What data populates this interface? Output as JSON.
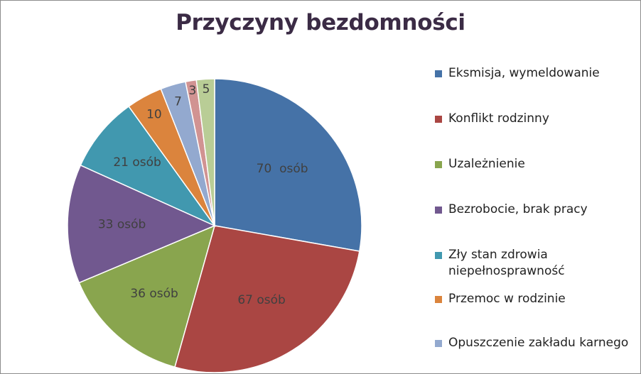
{
  "chart_data": {
    "type": "pie",
    "title": "Przyczyny bezdomności",
    "slices": [
      {
        "category": "Eksmisja, wymeldowanie",
        "value": 70,
        "label": "70  osób",
        "color": "#4572a7"
      },
      {
        "category": "Konflikt rodzinny",
        "value": 67,
        "label": "67 osób",
        "color": "#aa4643"
      },
      {
        "category": "Uzależnienie",
        "value": 36,
        "label": "36 osób",
        "color": "#89a54e"
      },
      {
        "category": "Bezrobocie, brak pracy",
        "value": 33,
        "label": "33 osób",
        "color": "#71588f"
      },
      {
        "category": "Zły stan zdrowia\nniepełnosprawność",
        "value": 21,
        "label": "21 osób",
        "color": "#4198af"
      },
      {
        "category": "Przemoc w rodzinie",
        "value": 10,
        "label": "10",
        "color": "#db843d"
      },
      {
        "category": "Opuszczenie zakładu karnego",
        "value": 7,
        "label": "7",
        "color": "#93a9cf"
      },
      {
        "category": "",
        "value": 3,
        "label": "3",
        "color": "#d19392"
      },
      {
        "category": "",
        "value": 5,
        "label": "5",
        "color": "#b9cd96"
      }
    ],
    "legend": {
      "position": "right"
    },
    "start_angle": "12 o'clock",
    "direction": "clockwise"
  }
}
